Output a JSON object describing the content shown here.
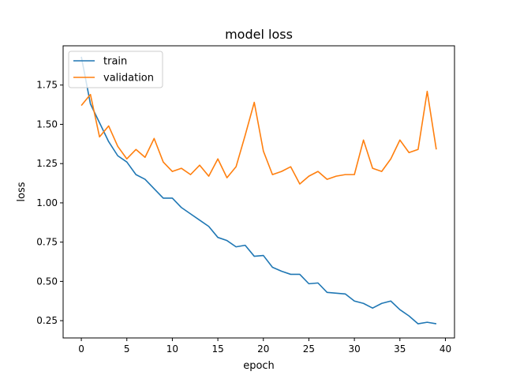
{
  "chart_data": {
    "type": "line",
    "title": "model loss",
    "xlabel": "epoch",
    "ylabel": "loss",
    "xlim": [
      -2,
      41
    ],
    "ylim": [
      0.14,
      2.0
    ],
    "xticks": [
      0,
      5,
      10,
      15,
      20,
      25,
      30,
      35,
      40
    ],
    "xtick_labels": [
      "0",
      "5",
      "10",
      "15",
      "20",
      "25",
      "30",
      "35",
      "40"
    ],
    "yticks": [
      0.25,
      0.5,
      0.75,
      1.0,
      1.25,
      1.5,
      1.75
    ],
    "ytick_labels": [
      "0.25",
      "0.50",
      "0.75",
      "1.00",
      "1.25",
      "1.50",
      "1.75"
    ],
    "grid": false,
    "legend_position": "top-left",
    "x": [
      0,
      1,
      2,
      3,
      4,
      5,
      6,
      7,
      8,
      9,
      10,
      11,
      12,
      13,
      14,
      15,
      16,
      17,
      18,
      19,
      20,
      21,
      22,
      23,
      24,
      25,
      26,
      27,
      28,
      29,
      30,
      31,
      32,
      33,
      34,
      35,
      36,
      37,
      38,
      39
    ],
    "series": [
      {
        "name": "train",
        "color": "#1f77b4",
        "values": [
          1.93,
          1.63,
          1.51,
          1.39,
          1.3,
          1.26,
          1.18,
          1.15,
          1.09,
          1.03,
          1.03,
          0.97,
          0.93,
          0.89,
          0.85,
          0.78,
          0.76,
          0.72,
          0.73,
          0.66,
          0.665,
          0.59,
          0.565,
          0.545,
          0.545,
          0.485,
          0.49,
          0.43,
          0.425,
          0.42,
          0.375,
          0.36,
          0.33,
          0.36,
          0.375,
          0.32,
          0.28,
          0.23,
          0.24,
          0.23
        ]
      },
      {
        "name": "validation",
        "color": "#ff7f0e",
        "values": [
          1.62,
          1.69,
          1.42,
          1.49,
          1.36,
          1.28,
          1.34,
          1.29,
          1.41,
          1.26,
          1.2,
          1.22,
          1.18,
          1.24,
          1.17,
          1.28,
          1.16,
          1.23,
          1.43,
          1.64,
          1.33,
          1.18,
          1.2,
          1.23,
          1.12,
          1.17,
          1.2,
          1.15,
          1.17,
          1.18,
          1.18,
          1.4,
          1.22,
          1.2,
          1.28,
          1.4,
          1.32,
          1.34,
          1.71,
          1.34
        ]
      }
    ]
  }
}
